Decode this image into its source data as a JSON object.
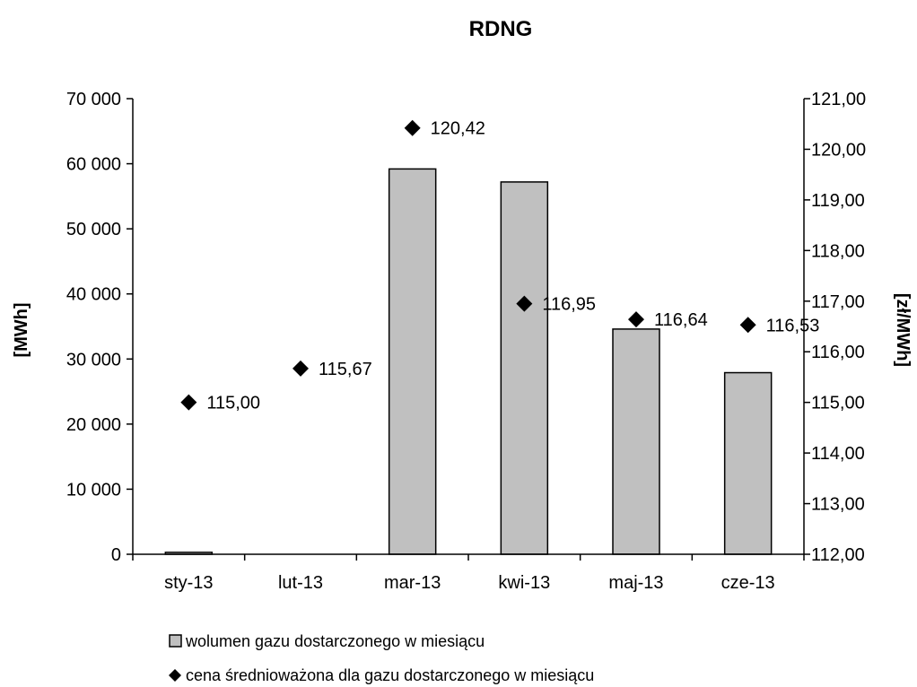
{
  "chart_data": {
    "type": "bar",
    "title": "RDNG",
    "categories": [
      "sty-13",
      "lut-13",
      "mar-13",
      "kwi-13",
      "maj-13",
      "cze-13"
    ],
    "series": [
      {
        "name": "wolumen gazu dostarczonego w miesiącu",
        "type": "bar",
        "axis": "left",
        "values": [
          300,
          0,
          59200,
          57200,
          34600,
          27900
        ],
        "color": "#c0c0c0"
      },
      {
        "name": "cena średnioważona dla gazu dostarczonego w miesiącu",
        "type": "scatter",
        "marker": "diamond",
        "axis": "right",
        "values": [
          115.0,
          115.67,
          120.42,
          116.95,
          116.64,
          116.53
        ],
        "data_labels": [
          "115,00",
          "115,67",
          "120,42",
          "116,95",
          "116,64",
          "116,53"
        ],
        "color": "#000000"
      }
    ],
    "y_left": {
      "label": "[MWh]",
      "ylim": [
        0,
        70000
      ],
      "ticks": [
        0,
        10000,
        20000,
        30000,
        40000,
        50000,
        60000,
        70000
      ],
      "tick_labels": [
        "0",
        "10 000",
        "20 000",
        "30 000",
        "40 000",
        "50 000",
        "60 000",
        "70 000"
      ]
    },
    "y_right": {
      "label": "[zł/MWh]",
      "ylim": [
        112,
        121
      ],
      "ticks": [
        112,
        113,
        114,
        115,
        116,
        117,
        118,
        119,
        120,
        121
      ],
      "tick_labels": [
        "112,00",
        "113,00",
        "114,00",
        "115,00",
        "116,00",
        "117,00",
        "118,00",
        "119,00",
        "120,00",
        "121,00"
      ]
    },
    "grid": false,
    "legend_position": "bottom-left"
  }
}
